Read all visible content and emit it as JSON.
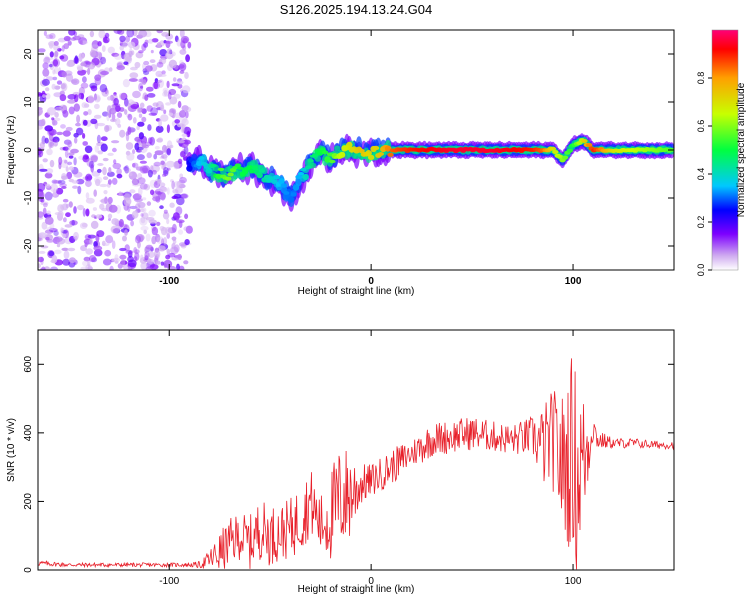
{
  "title": "S126.2025.194.13.24.G04",
  "colors": {
    "snr_line": "#e8202a",
    "frame": "#000000",
    "background": "#ffffff"
  },
  "chart_data": [
    {
      "type": "heatmap",
      "title": "S126.2025.194.13.24.G04",
      "xlabel": "Height of straight line (km)",
      "ylabel": "Frequency (Hz)",
      "xlim": [
        -165,
        150
      ],
      "ylim": [
        -25,
        25
      ],
      "xticks": [
        -100,
        0,
        100
      ],
      "xtick_labels": [
        "-100",
        "0",
        "100"
      ],
      "yticks": [
        -20,
        -10,
        0,
        10,
        20
      ],
      "ytick_labels": [
        "-20",
        "-10",
        "0",
        "10",
        "20"
      ],
      "grid": false,
      "colorbar": {
        "label": "Normalized spectral amplitude",
        "range": [
          0,
          1
        ],
        "ticks": [
          0,
          0.2,
          0.4,
          0.6,
          0.8
        ],
        "tick_labels": [
          "0.0",
          "0.2",
          "0.4",
          "0.6",
          "0.8"
        ],
        "colormap": "rainbow"
      },
      "ridge": {
        "x": [
          -90,
          -85,
          -80,
          -75,
          -70,
          -65,
          -60,
          -55,
          -50,
          -45,
          -40,
          -35,
          -30,
          -25,
          -20,
          -15,
          -10,
          -5,
          0,
          5,
          10,
          20,
          40,
          60,
          80,
          85,
          90,
          95,
          100,
          105,
          110,
          120,
          130,
          140,
          150
        ],
        "freq": [
          -3,
          -2,
          -4,
          -5,
          -5,
          -4,
          -3.5,
          -5,
          -6,
          -7,
          -10,
          -6,
          -3,
          0,
          -2,
          0,
          0,
          0,
          -1,
          0,
          0,
          0,
          0,
          0,
          0,
          0,
          0,
          -2,
          1,
          2,
          0,
          0,
          0,
          0,
          0
        ],
        "amplitude": [
          0.25,
          0.35,
          0.4,
          0.55,
          0.6,
          0.5,
          0.5,
          0.45,
          0.4,
          0.35,
          0.3,
          0.35,
          0.45,
          0.5,
          0.55,
          0.65,
          0.7,
          0.75,
          0.7,
          0.75,
          0.85,
          0.9,
          0.95,
          0.95,
          0.9,
          0.85,
          0.7,
          0.6,
          0.5,
          0.7,
          0.9,
          0.7,
          0.65,
          0.6,
          0.55
        ]
      },
      "noise_region": {
        "x": [
          -165,
          -90
        ],
        "amplitude": [
          0,
          0.15
        ]
      }
    },
    {
      "type": "line",
      "xlabel": "Height of straight line (km)",
      "ylabel": "SNR (10 * v/v)",
      "xlim": [
        -165,
        150
      ],
      "ylim": [
        0,
        700
      ],
      "xticks": [
        -100,
        0,
        100
      ],
      "xtick_labels": [
        "-100",
        "0",
        "100"
      ],
      "yticks": [
        0,
        200,
        400,
        600
      ],
      "ytick_labels": [
        "0",
        "200",
        "400",
        "600"
      ],
      "grid": false,
      "series": [
        {
          "x": [
            -165,
            -150,
            -130,
            -110,
            -90,
            -85,
            -80,
            -75,
            -70,
            -65,
            -60,
            -55,
            -50,
            -45,
            -40,
            -35,
            -30,
            -25,
            -20,
            -15,
            -10,
            -5,
            0,
            5,
            10,
            15,
            20,
            25,
            30,
            40,
            50,
            60,
            70,
            80,
            85,
            90,
            95,
            100,
            102,
            104,
            106,
            110,
            112,
            120,
            130,
            140,
            150
          ],
          "y": [
            20,
            15,
            15,
            15,
            15,
            15,
            30,
            50,
            80,
            100,
            80,
            120,
            100,
            110,
            120,
            150,
            200,
            130,
            160,
            210,
            220,
            250,
            260,
            280,
            300,
            320,
            340,
            360,
            380,
            390,
            400,
            390,
            380,
            390,
            360,
            380,
            300,
            350,
            250,
            320,
            330,
            420,
            380,
            370,
            370,
            365,
            365
          ],
          "spread": [
            8,
            6,
            6,
            6,
            6,
            10,
            30,
            60,
            70,
            70,
            80,
            90,
            90,
            80,
            90,
            100,
            100,
            90,
            140,
            160,
            140,
            60,
            50,
            50,
            50,
            50,
            40,
            50,
            50,
            50,
            50,
            45,
            45,
            60,
            120,
            150,
            220,
            300,
            320,
            220,
            180,
            40,
            30,
            15,
            15,
            12,
            12
          ]
        }
      ]
    }
  ]
}
